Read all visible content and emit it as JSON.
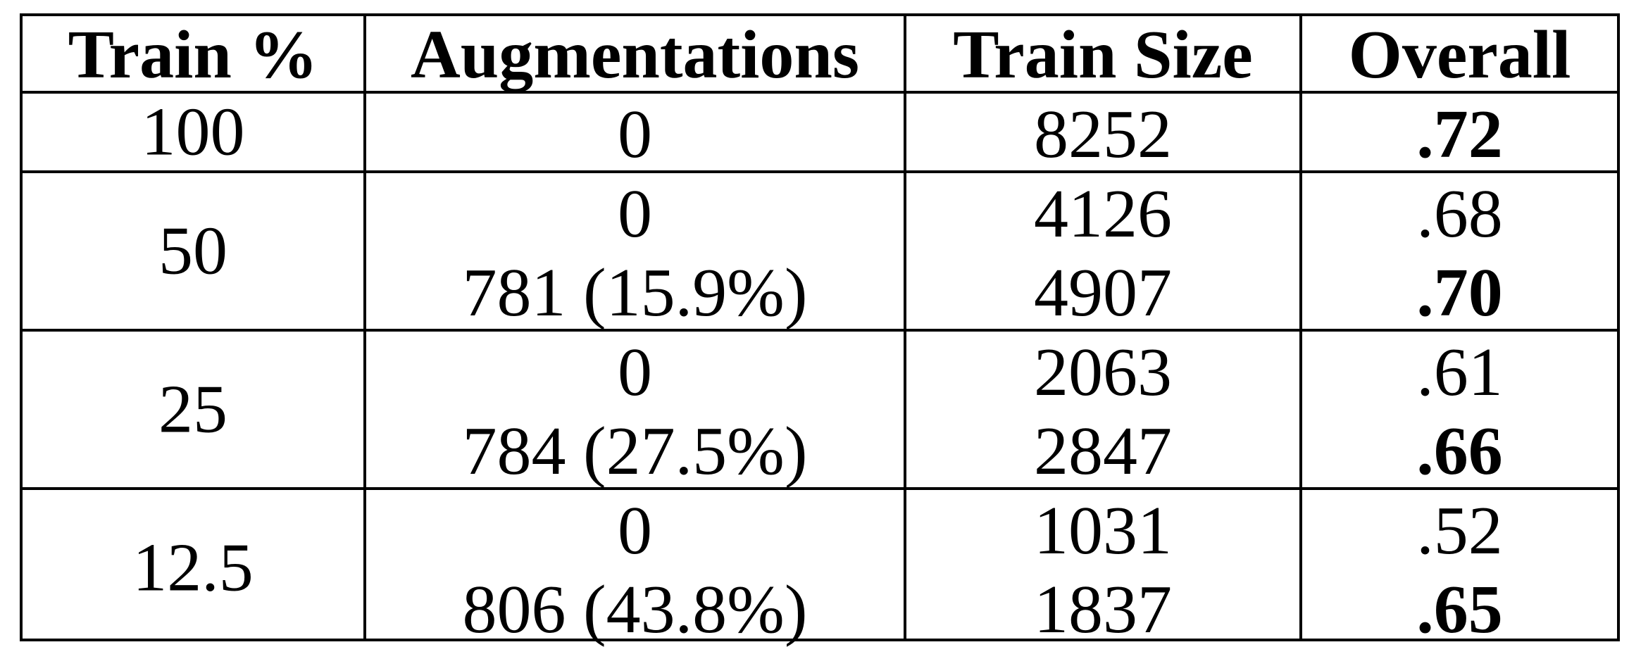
{
  "table": {
    "header": [
      "Train %",
      "Augmentations",
      "Train Size",
      "Overall"
    ],
    "rows": [
      {
        "train_pct": "100",
        "entries": [
          {
            "augmentations": "0",
            "train_size": "8252",
            "overall": ".72",
            "bold": true
          }
        ]
      },
      {
        "train_pct": "50",
        "entries": [
          {
            "augmentations": "0",
            "train_size": "4126",
            "overall": ".68",
            "bold": false
          },
          {
            "augmentations": "781 (15.9%)",
            "train_size": "4907",
            "overall": ".70",
            "bold": true
          }
        ]
      },
      {
        "train_pct": "25",
        "entries": [
          {
            "augmentations": "0",
            "train_size": "2063",
            "overall": ".61",
            "bold": false
          },
          {
            "augmentations": "784 (27.5%)",
            "train_size": "2847",
            "overall": ".66",
            "bold": true
          }
        ]
      },
      {
        "train_pct": "12.5",
        "entries": [
          {
            "augmentations": "0",
            "train_size": "1031",
            "overall": ".52",
            "bold": false
          },
          {
            "augmentations": "806 (43.8%)",
            "train_size": "1837",
            "overall": ".65",
            "bold": true
          }
        ]
      }
    ]
  }
}
